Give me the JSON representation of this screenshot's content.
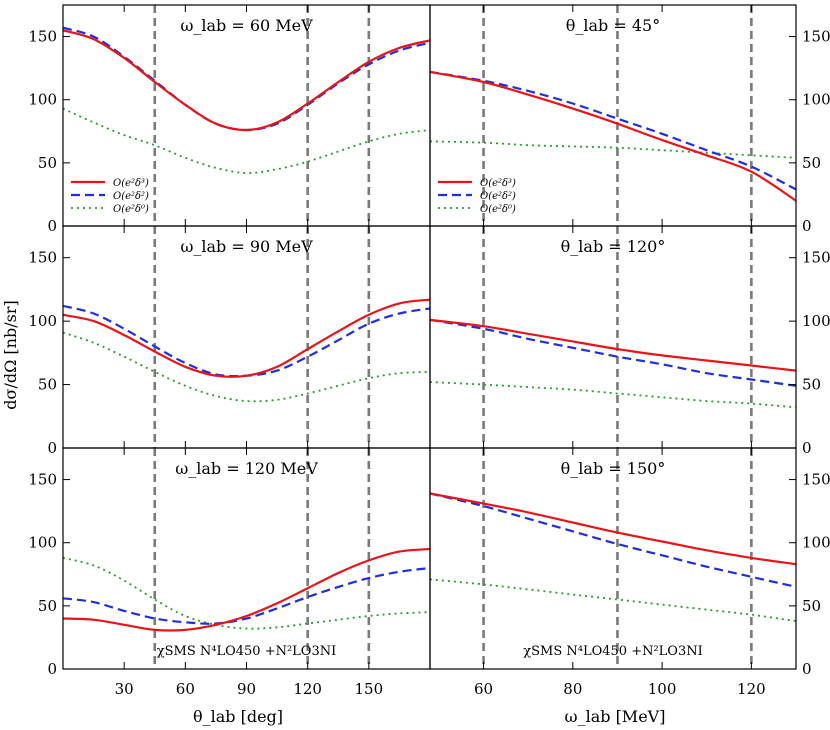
{
  "figure": {
    "ylabel": "dσ/dΩ [nb/sr]",
    "xlabel_left": "θ_lab [deg]",
    "xlabel_right": "ω_lab [MeV]",
    "footnote": "χSMS  N⁴LO450 +N²LO3NI"
  },
  "colors": {
    "red": "#e8141a",
    "blue": "#1f2fe0",
    "green": "#2a9a2a",
    "vline": "#7a7a7a"
  },
  "chart_data": [
    {
      "type": "line",
      "panel": "left-top",
      "title": "ω_lab = 60 MeV",
      "xlim": [
        0,
        180
      ],
      "ylim": [
        0,
        175
      ],
      "xticks": [
        30,
        60,
        90,
        120,
        150
      ],
      "yticks": [
        0,
        50,
        100,
        150
      ],
      "vlines": [
        45,
        120,
        150
      ],
      "legend": [
        "O(e²δ³)",
        "O(e²δ²)",
        "O(e²δ⁰)"
      ],
      "x": [
        0,
        15,
        30,
        45,
        60,
        75,
        90,
        105,
        120,
        135,
        150,
        165,
        180
      ],
      "series": [
        {
          "name": "O(e²δ³)",
          "style": "solid",
          "values": [
            155,
            148,
            133,
            114,
            96,
            81,
            76,
            82,
            97,
            114,
            130,
            141,
            147
          ]
        },
        {
          "name": "O(e²δ²)",
          "style": "dashed",
          "values": [
            157,
            150,
            134,
            115,
            96,
            81,
            76,
            81,
            96,
            113,
            128,
            139,
            145
          ]
        },
        {
          "name": "O(e²δ⁰)",
          "style": "dotted",
          "values": [
            93,
            82,
            72,
            64,
            54,
            46,
            42,
            45,
            51,
            59,
            67,
            73,
            76
          ]
        }
      ]
    },
    {
      "type": "line",
      "panel": "right-top",
      "title": "θ_lab = 45°",
      "xlim": [
        48,
        130
      ],
      "ylim": [
        0,
        175
      ],
      "xticks": [
        60,
        80,
        100,
        120
      ],
      "yticks": [
        0,
        50,
        100,
        150
      ],
      "vlines": [
        60,
        90,
        120
      ],
      "legend": [
        "O(e²δ³)",
        "O(e²δ²)",
        "O(e²δ⁰)"
      ],
      "x": [
        48,
        60,
        70,
        80,
        90,
        100,
        110,
        120,
        130
      ],
      "series": [
        {
          "name": "O(e²δ³)",
          "style": "solid",
          "values": [
            122,
            114,
            104,
            93,
            81,
            68,
            56,
            43,
            20
          ]
        },
        {
          "name": "O(e²δ²)",
          "style": "dashed",
          "values": [
            122,
            115,
            107,
            97,
            85,
            73,
            60,
            47,
            29
          ]
        },
        {
          "name": "O(e²δ⁰)",
          "style": "dotted",
          "values": [
            67,
            66,
            64,
            63,
            62,
            60,
            58,
            56,
            54
          ]
        }
      ]
    },
    {
      "type": "line",
      "panel": "left-middle",
      "title": "ω_lab = 90 MeV",
      "xlim": [
        0,
        180
      ],
      "ylim": [
        0,
        175
      ],
      "xticks": [
        30,
        60,
        90,
        120,
        150
      ],
      "yticks": [
        0,
        50,
        100,
        150
      ],
      "vlines": [
        45,
        120,
        150
      ],
      "x": [
        0,
        15,
        30,
        45,
        60,
        75,
        90,
        105,
        120,
        135,
        150,
        165,
        180
      ],
      "series": [
        {
          "name": "O(e²δ³)",
          "style": "solid",
          "values": [
            105,
            100,
            89,
            76,
            64,
            57,
            57,
            64,
            78,
            92,
            105,
            114,
            117
          ]
        },
        {
          "name": "O(e²δ²)",
          "style": "dashed",
          "values": [
            112,
            106,
            94,
            80,
            67,
            58,
            57,
            61,
            72,
            85,
            98,
            106,
            110
          ]
        },
        {
          "name": "O(e²δ⁰)",
          "style": "dotted",
          "values": [
            91,
            83,
            72,
            60,
            49,
            41,
            37,
            38,
            43,
            49,
            55,
            59,
            60
          ]
        }
      ]
    },
    {
      "type": "line",
      "panel": "right-middle",
      "title": "θ_lab = 120°",
      "xlim": [
        48,
        130
      ],
      "ylim": [
        0,
        175
      ],
      "xticks": [
        60,
        80,
        100,
        120
      ],
      "yticks": [
        0,
        50,
        100,
        150
      ],
      "vlines": [
        60,
        90,
        120
      ],
      "x": [
        48,
        60,
        70,
        80,
        90,
        100,
        110,
        120,
        130
      ],
      "series": [
        {
          "name": "O(e²δ³)",
          "style": "solid",
          "values": [
            101,
            96,
            90,
            84,
            78,
            73,
            69,
            65,
            61
          ]
        },
        {
          "name": "O(e²δ²)",
          "style": "dashed",
          "values": [
            101,
            94,
            86,
            79,
            72,
            66,
            59,
            54,
            49
          ]
        },
        {
          "name": "O(e²δ⁰)",
          "style": "dotted",
          "values": [
            52,
            50,
            48,
            46,
            43,
            40,
            37,
            35,
            32
          ]
        }
      ]
    },
    {
      "type": "line",
      "panel": "left-bottom",
      "title": "ω_lab = 120 MeV",
      "xlim": [
        0,
        180
      ],
      "ylim": [
        0,
        175
      ],
      "xticks": [
        30,
        60,
        90,
        120,
        150
      ],
      "yticks": [
        0,
        50,
        100,
        150
      ],
      "vlines": [
        45,
        120,
        150
      ],
      "x": [
        0,
        15,
        30,
        45,
        60,
        75,
        90,
        105,
        120,
        135,
        150,
        165,
        180
      ],
      "series": [
        {
          "name": "O(e²δ³)",
          "style": "solid",
          "values": [
            40,
            39,
            35,
            31,
            31,
            35,
            42,
            52,
            64,
            76,
            86,
            93,
            95
          ]
        },
        {
          "name": "O(e²δ²)",
          "style": "dashed",
          "values": [
            56,
            53,
            46,
            40,
            37,
            36,
            40,
            48,
            57,
            65,
            72,
            77,
            80
          ]
        },
        {
          "name": "O(e²δ⁰)",
          "style": "dotted",
          "values": [
            88,
            82,
            70,
            55,
            42,
            35,
            32,
            33,
            36,
            39,
            42,
            44,
            45
          ]
        }
      ]
    },
    {
      "type": "line",
      "panel": "right-bottom",
      "title": "θ_lab = 150°",
      "xlim": [
        48,
        130
      ],
      "ylim": [
        0,
        175
      ],
      "xticks": [
        60,
        80,
        100,
        120
      ],
      "yticks": [
        0,
        50,
        100,
        150
      ],
      "vlines": [
        60,
        90,
        120
      ],
      "x": [
        48,
        60,
        70,
        80,
        90,
        100,
        110,
        120,
        130
      ],
      "series": [
        {
          "name": "O(e²δ³)",
          "style": "solid",
          "values": [
            139,
            131,
            124,
            116,
            108,
            101,
            94,
            88,
            83
          ]
        },
        {
          "name": "O(e²δ²)",
          "style": "dashed",
          "values": [
            139,
            129,
            119,
            109,
            99,
            90,
            81,
            73,
            65
          ]
        },
        {
          "name": "O(e²δ⁰)",
          "style": "dotted",
          "values": [
            71,
            67,
            63,
            59,
            55,
            51,
            47,
            43,
            38
          ]
        }
      ]
    }
  ]
}
